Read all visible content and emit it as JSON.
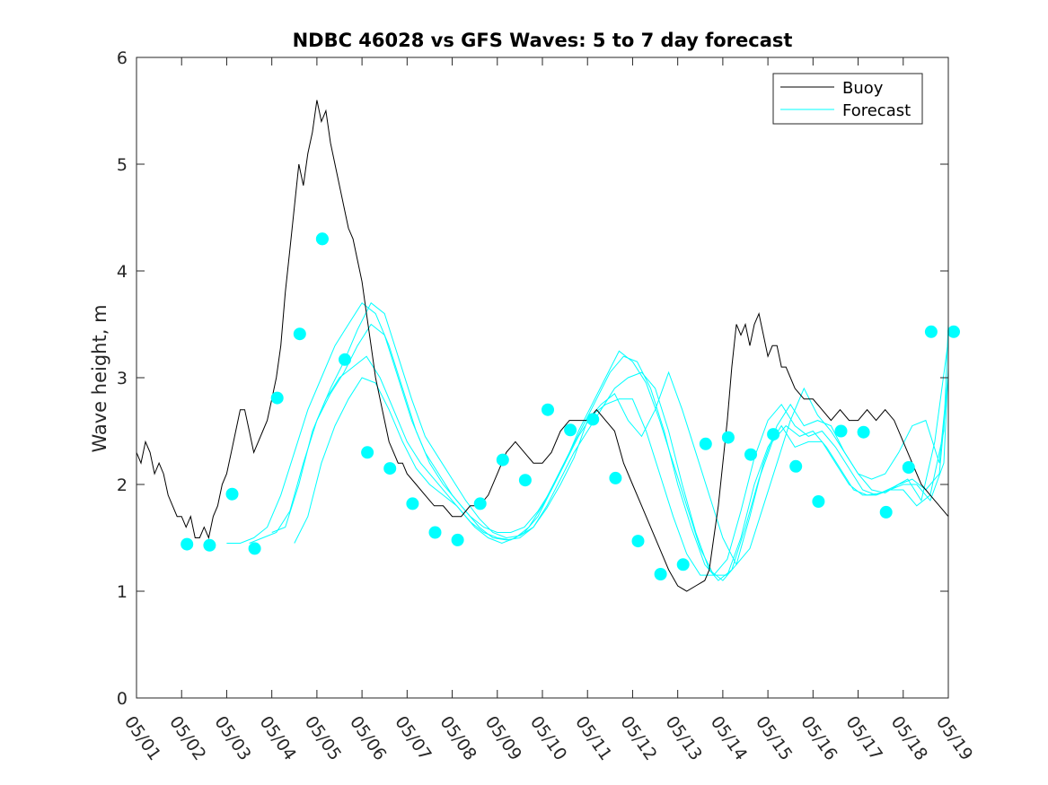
{
  "chart_data": {
    "type": "line",
    "title": "NDBC 46028 vs GFS Waves: 5 to 7 day forecast",
    "xlabel": "",
    "ylabel": "Wave height, m",
    "xlim": [
      0,
      18
    ],
    "ylim": [
      0,
      6
    ],
    "x_tick_labels": [
      "05/01",
      "05/02",
      "05/03",
      "05/04",
      "05/05",
      "05/06",
      "05/07",
      "05/08",
      "05/09",
      "05/10",
      "05/11",
      "05/12",
      "05/13",
      "05/14",
      "05/15",
      "05/16",
      "05/17",
      "05/18",
      "05/19"
    ],
    "y_ticks": [
      0,
      1,
      2,
      3,
      4,
      5,
      6
    ],
    "legend": {
      "position": "top-right",
      "entries": [
        "Buoy",
        "Forecast"
      ]
    },
    "colors": {
      "buoy": "#000000",
      "forecast": "#00ffff",
      "axes": "#262626"
    },
    "buoy": {
      "name": "Buoy",
      "x": [
        0.0,
        0.1,
        0.2,
        0.3,
        0.4,
        0.5,
        0.6,
        0.7,
        0.8,
        0.9,
        1.0,
        1.1,
        1.2,
        1.3,
        1.4,
        1.5,
        1.6,
        1.7,
        1.8,
        1.9,
        2.0,
        2.1,
        2.2,
        2.3,
        2.4,
        2.5,
        2.6,
        2.7,
        2.8,
        2.9,
        3.0,
        3.1,
        3.2,
        3.3,
        3.4,
        3.5,
        3.6,
        3.7,
        3.8,
        3.9,
        4.0,
        4.1,
        4.2,
        4.3,
        4.4,
        4.5,
        4.6,
        4.7,
        4.8,
        4.9,
        5.0,
        5.1,
        5.2,
        5.3,
        5.4,
        5.5,
        5.6,
        5.7,
        5.8,
        5.9,
        6.0,
        6.2,
        6.4,
        6.6,
        6.8,
        7.0,
        7.2,
        7.4,
        7.6,
        7.8,
        8.0,
        8.2,
        8.4,
        8.6,
        8.8,
        9.0,
        9.2,
        9.4,
        9.6,
        9.8,
        10.0,
        10.2,
        10.4,
        10.6,
        10.8,
        11.0,
        11.2,
        11.4,
        11.6,
        11.8,
        12.0,
        12.2,
        12.4,
        12.6,
        12.7,
        12.8,
        12.9,
        13.0,
        13.1,
        13.2,
        13.3,
        13.4,
        13.5,
        13.6,
        13.7,
        13.8,
        13.9,
        14.0,
        14.1,
        14.2,
        14.3,
        14.4,
        14.5,
        14.6,
        14.8,
        15.0,
        15.2,
        15.4,
        15.6,
        15.8,
        16.0,
        16.2,
        16.4,
        16.6,
        16.8,
        17.0,
        17.2,
        17.4,
        17.6,
        17.8,
        18.0
      ],
      "y": [
        2.3,
        2.2,
        2.4,
        2.3,
        2.1,
        2.2,
        2.1,
        1.9,
        1.8,
        1.7,
        1.7,
        1.6,
        1.7,
        1.5,
        1.5,
        1.6,
        1.5,
        1.7,
        1.8,
        2.0,
        2.1,
        2.3,
        2.5,
        2.7,
        2.7,
        2.5,
        2.3,
        2.4,
        2.5,
        2.6,
        2.8,
        3.0,
        3.3,
        3.8,
        4.2,
        4.6,
        5.0,
        4.8,
        5.1,
        5.3,
        5.6,
        5.4,
        5.5,
        5.2,
        5.0,
        4.8,
        4.6,
        4.4,
        4.3,
        4.1,
        3.9,
        3.6,
        3.3,
        3.0,
        2.8,
        2.6,
        2.4,
        2.3,
        2.2,
        2.2,
        2.1,
        2.0,
        1.9,
        1.8,
        1.8,
        1.7,
        1.7,
        1.8,
        1.8,
        1.9,
        2.1,
        2.3,
        2.4,
        2.3,
        2.2,
        2.2,
        2.3,
        2.5,
        2.6,
        2.6,
        2.6,
        2.7,
        2.6,
        2.5,
        2.2,
        2.0,
        1.8,
        1.6,
        1.4,
        1.2,
        1.05,
        1.0,
        1.05,
        1.1,
        1.2,
        1.5,
        1.8,
        2.2,
        2.6,
        3.1,
        3.5,
        3.4,
        3.5,
        3.3,
        3.5,
        3.6,
        3.4,
        3.2,
        3.3,
        3.3,
        3.1,
        3.1,
        3.0,
        2.9,
        2.8,
        2.8,
        2.7,
        2.6,
        2.7,
        2.6,
        2.6,
        2.7,
        2.6,
        2.7,
        2.6,
        2.4,
        2.2,
        2.0,
        1.9,
        1.8,
        1.7
      ]
    },
    "forecast_series": [
      {
        "x": [
          2.0,
          2.3,
          2.6,
          2.9,
          3.2,
          3.5,
          3.8,
          4.1,
          4.4,
          4.7,
          5.0,
          5.3,
          5.6,
          5.9,
          6.2,
          6.5,
          6.8,
          7.1,
          7.4,
          7.7,
          8.0,
          8.3,
          8.6,
          8.9,
          9.2,
          9.5,
          9.8,
          10.1,
          10.4,
          10.7,
          11.0,
          11.3,
          11.6,
          11.9,
          12.2,
          12.5,
          12.8,
          13.1,
          13.4,
          13.7,
          14.0,
          14.3,
          14.6,
          14.9,
          15.2,
          15.5,
          15.8,
          16.1,
          16.4,
          16.7,
          17.0,
          17.3,
          17.6,
          17.9,
          18.0
        ],
        "y": [
          1.45,
          1.45,
          1.5,
          1.6,
          1.9,
          2.3,
          2.7,
          3.0,
          3.3,
          3.5,
          3.7,
          3.6,
          3.3,
          2.9,
          2.5,
          2.2,
          2.0,
          1.85,
          1.7,
          1.6,
          1.55,
          1.55,
          1.6,
          1.75,
          1.95,
          2.2,
          2.45,
          2.65,
          2.75,
          2.8,
          2.8,
          2.5,
          2.1,
          1.7,
          1.35,
          1.15,
          1.15,
          1.3,
          1.75,
          2.25,
          2.6,
          2.75,
          2.55,
          2.45,
          2.5,
          2.35,
          2.15,
          1.95,
          1.9,
          1.95,
          2.0,
          2.0,
          1.85,
          2.2,
          3.1
        ]
      },
      {
        "x": [
          2.5,
          2.8,
          3.1,
          3.4,
          3.7,
          4.0,
          4.3,
          4.6,
          4.9,
          5.2,
          5.5,
          5.8,
          6.1,
          6.4,
          6.7,
          7.0,
          7.3,
          7.6,
          7.9,
          8.2,
          8.5,
          8.8,
          9.1,
          9.4,
          9.7,
          10.0,
          10.3,
          10.6,
          10.9,
          11.2,
          11.5,
          11.8,
          12.1,
          12.4,
          12.7,
          13.0,
          13.3,
          13.6,
          13.9,
          14.2,
          14.5,
          14.8,
          15.1,
          15.4,
          15.7,
          16.0,
          16.3,
          16.6,
          16.9,
          17.2,
          17.5,
          17.8,
          18.0
        ],
        "y": [
          1.45,
          1.5,
          1.55,
          1.75,
          2.2,
          2.6,
          2.85,
          3.05,
          3.3,
          3.5,
          3.4,
          3.0,
          2.6,
          2.3,
          2.1,
          1.9,
          1.75,
          1.6,
          1.5,
          1.48,
          1.5,
          1.6,
          1.8,
          2.05,
          2.3,
          2.5,
          2.7,
          2.9,
          3.0,
          3.05,
          2.9,
          2.5,
          2.0,
          1.55,
          1.2,
          1.1,
          1.25,
          1.7,
          2.2,
          2.55,
          2.75,
          2.55,
          2.6,
          2.55,
          2.3,
          2.1,
          1.95,
          1.92,
          2.0,
          2.05,
          1.95,
          2.1,
          3.0
        ]
      },
      {
        "x": [
          3.0,
          3.3,
          3.6,
          3.9,
          4.2,
          4.5,
          4.8,
          5.1,
          5.4,
          5.7,
          6.0,
          6.3,
          6.6,
          6.9,
          7.2,
          7.5,
          7.8,
          8.1,
          8.4,
          8.7,
          9.0,
          9.3,
          9.6,
          9.9,
          10.2,
          10.5,
          10.8,
          11.1,
          11.4,
          11.7,
          12.0,
          12.3,
          12.6,
          12.9,
          13.2,
          13.5,
          13.8,
          14.1,
          14.4,
          14.7,
          15.0,
          15.3,
          15.6,
          15.9,
          16.2,
          16.5,
          16.8,
          17.1,
          17.4,
          17.7,
          18.0
        ],
        "y": [
          1.55,
          1.6,
          2.0,
          2.5,
          2.8,
          3.0,
          3.1,
          3.2,
          3.0,
          2.7,
          2.4,
          2.2,
          2.05,
          1.9,
          1.75,
          1.6,
          1.5,
          1.45,
          1.5,
          1.6,
          1.8,
          2.05,
          2.3,
          2.55,
          2.8,
          3.05,
          3.2,
          3.15,
          2.9,
          2.5,
          2.0,
          1.6,
          1.25,
          1.1,
          1.2,
          1.6,
          2.05,
          2.4,
          2.55,
          2.45,
          2.5,
          2.35,
          2.15,
          1.95,
          1.9,
          1.92,
          1.98,
          2.05,
          1.85,
          2.4,
          3.35
        ]
      },
      {
        "x": [
          3.5,
          3.8,
          4.1,
          4.4,
          4.7,
          5.0,
          5.3,
          5.6,
          5.9,
          6.2,
          6.5,
          6.8,
          7.1,
          7.4,
          7.7,
          8.0,
          8.3,
          8.6,
          8.9,
          9.2,
          9.5,
          9.8,
          10.1,
          10.4,
          10.7,
          11.0,
          11.3,
          11.6,
          11.9,
          12.2,
          12.5,
          12.8,
          13.1,
          13.4,
          13.7,
          14.0,
          14.3,
          14.6,
          14.9,
          15.2,
          15.5,
          15.8,
          16.1,
          16.4,
          16.7,
          17.0,
          17.3,
          17.6,
          17.9,
          18.0
        ],
        "y": [
          1.45,
          1.7,
          2.2,
          2.55,
          2.8,
          3.0,
          2.95,
          2.7,
          2.4,
          2.15,
          2.0,
          1.9,
          1.8,
          1.65,
          1.55,
          1.5,
          1.48,
          1.55,
          1.7,
          1.95,
          2.2,
          2.5,
          2.75,
          3.0,
          3.25,
          3.15,
          2.95,
          2.6,
          2.2,
          1.8,
          1.4,
          1.15,
          1.15,
          1.5,
          2.0,
          2.35,
          2.55,
          2.35,
          2.4,
          2.4,
          2.2,
          2.0,
          1.9,
          1.9,
          1.95,
          1.95,
          1.8,
          1.9,
          2.5,
          3.5
        ]
      },
      {
        "x": [
          4.0,
          4.3,
          4.6,
          4.9,
          5.2,
          5.5,
          5.8,
          6.1,
          6.4,
          6.7,
          7.0,
          7.3,
          7.6,
          7.9,
          8.2,
          8.5,
          8.8,
          9.1,
          9.4,
          9.7,
          10.0,
          10.3,
          10.6,
          10.9,
          11.2,
          11.5,
          11.8,
          12.1,
          12.4,
          12.7,
          13.0,
          13.3,
          13.6,
          13.9,
          14.2,
          14.5,
          14.8,
          15.1,
          15.4,
          15.7,
          16.0,
          16.3,
          16.6,
          16.9,
          17.2,
          17.5,
          17.8,
          18.0
        ],
        "y": [
          2.6,
          2.9,
          3.15,
          3.45,
          3.7,
          3.6,
          3.2,
          2.8,
          2.45,
          2.25,
          2.05,
          1.85,
          1.68,
          1.55,
          1.5,
          1.52,
          1.6,
          1.78,
          2.0,
          2.25,
          2.6,
          2.75,
          2.85,
          2.6,
          2.45,
          2.7,
          3.05,
          2.7,
          2.3,
          1.9,
          1.5,
          1.25,
          1.4,
          1.8,
          2.2,
          2.6,
          2.9,
          2.65,
          2.5,
          2.3,
          2.1,
          2.05,
          2.1,
          2.3,
          2.55,
          2.6,
          2.2,
          3.05
        ]
      }
    ],
    "forecast_markers": {
      "x": [
        1.12,
        1.62,
        2.12,
        2.62,
        3.12,
        3.62,
        4.12,
        4.12,
        4.62,
        5.12,
        5.62,
        6.12,
        6.62,
        7.12,
        7.62,
        8.12,
        8.62,
        9.12,
        9.62,
        10.12,
        10.62,
        11.12,
        11.62,
        12.12,
        12.62,
        13.12,
        13.62,
        14.12,
        14.62,
        15.12,
        15.62,
        16.12,
        16.62,
        17.12,
        17.62,
        18.12
      ],
      "y": [
        1.44,
        1.43,
        1.91,
        1.4,
        2.81,
        3.41,
        4.3,
        4.3,
        3.17,
        2.3,
        2.15,
        1.82,
        1.55,
        1.48,
        1.82,
        2.23,
        2.04,
        2.7,
        2.51,
        2.61,
        2.06,
        1.47,
        1.16,
        1.25,
        2.38,
        2.44,
        2.28,
        2.47,
        2.17,
        1.84,
        2.5,
        2.49,
        1.74,
        2.16,
        3.43,
        3.43
      ]
    }
  }
}
